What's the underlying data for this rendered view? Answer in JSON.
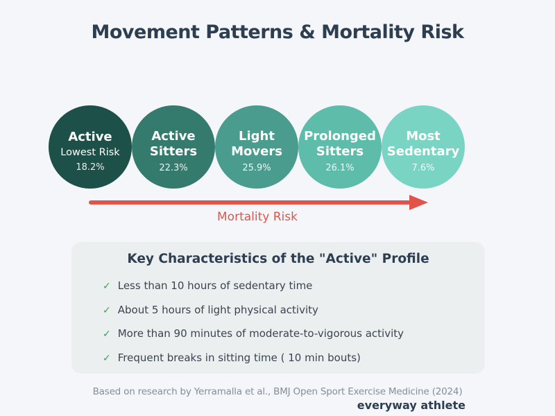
{
  "title": "Movement Patterns & Mortality Risk",
  "colors": {
    "background": "#f4f6fa",
    "heading": "#2c3e50",
    "arrow_red": "#e2544a",
    "panel_bg": "#eceff0",
    "check_green": "#33a457",
    "body_text": "#3a4450",
    "footnote_gray": "#848e98"
  },
  "profiles": [
    {
      "name": "Active",
      "sublabel": "Lowest Risk",
      "value": "18.2%",
      "color": "#1d5048"
    },
    {
      "name": "Active Sitters",
      "value": "22.3%",
      "color": "#347a6d"
    },
    {
      "name": "Light Movers",
      "value": "25.9%",
      "color": "#4a9d8e"
    },
    {
      "name": "Prolonged Sitters",
      "value": "26.1%",
      "color": "#5ebcab"
    },
    {
      "name": "Most Sedentary",
      "value": "7.6%",
      "color": "#7ad4c4"
    }
  ],
  "arrow": {
    "label": "Mortality Risk",
    "direction": "left-to-right-increasing"
  },
  "panel": {
    "title": "Key Characteristics of the \"Active\" Profile",
    "check_glyph": "✓",
    "items": [
      "Less than 10 hours of sedentary time",
      "About 5 hours of light physical activity",
      "More than 90 minutes of moderate-to-vigorous activity",
      "Frequent breaks in sitting time ( 10 min bouts)"
    ]
  },
  "footer": {
    "attribution": "Based on research by Yerramalla et al., BMJ Open Sport Exercise Medicine (2024)",
    "brand": "everyway athlete"
  },
  "chart_data": {
    "type": "table",
    "title": "Movement Patterns & Mortality Risk",
    "categories": [
      "Active",
      "Active Sitters",
      "Light Movers",
      "Prolonged Sitters",
      "Most Sedentary"
    ],
    "values": [
      18.2,
      22.3,
      25.9,
      26.1,
      7.6
    ],
    "value_unit": "%",
    "xlabel": "Mortality Risk",
    "annotations": [
      "Active = Lowest Risk"
    ],
    "legend_position": "none",
    "grid": false
  }
}
